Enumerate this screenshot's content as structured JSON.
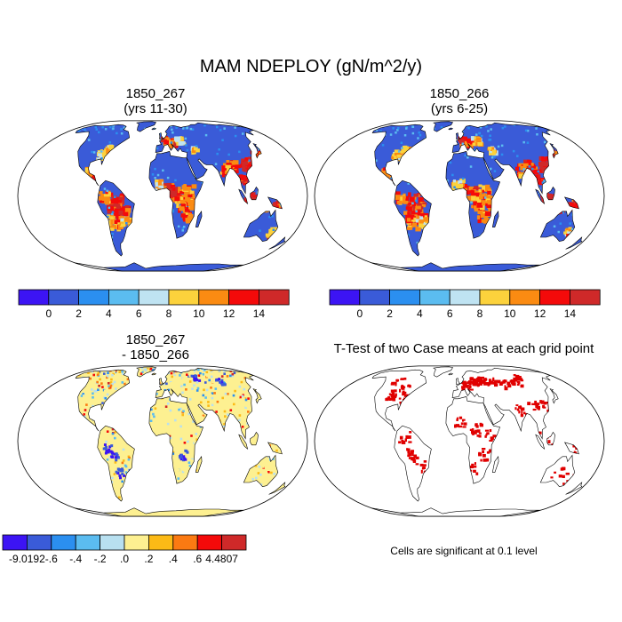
{
  "title": "MAM NDEPLOY (gN/m^2/y)",
  "panels": [
    {
      "id": "p1",
      "title_line1": "1850_267",
      "title_line2": "(yrs 11-30)",
      "colorbar": "main"
    },
    {
      "id": "p2",
      "title_line1": "1850_266",
      "title_line2": "(yrs 6-25)",
      "colorbar": "main"
    },
    {
      "id": "p3",
      "title_line1": "1850_267",
      "title_line2": "- 1850_266",
      "colorbar": "diff"
    },
    {
      "id": "p4",
      "title_line1": "T-Test of two Case means at each grid point",
      "title_line2": "",
      "colorbar": "none"
    }
  ],
  "colorbars": {
    "main": {
      "colors": [
        "#3c14f4",
        "#3a5bd8",
        "#2b8ff0",
        "#5bbcf0",
        "#bfe3f2",
        "#fcd23c",
        "#fb8b12",
        "#f40a0a",
        "#cf2929"
      ],
      "labels": [
        "0",
        "2",
        "4",
        "6",
        "8",
        "10",
        "12",
        "14"
      ]
    },
    "diff": {
      "colors": [
        "#3c14f4",
        "#3a5bd8",
        "#2b8ff0",
        "#5bbcf0",
        "#b8e0f0",
        "#fdf091",
        "#fcba16",
        "#fb7a12",
        "#f40a0a",
        "#cf2929"
      ],
      "labels": [
        "-9.0192",
        "-.6",
        "-.4",
        "-.2",
        ".0",
        ".2",
        ".4",
        ".6",
        "4.4807"
      ]
    }
  },
  "significance_note": "Cells are significant at 0.1 level",
  "map_colors": {
    "ocean": "#ffffff",
    "coast": "#000000",
    "land_base": "#3a5bd8",
    "antarctica_main": "#3a5bd8",
    "antarctica_diff": "#fdf091",
    "diff_land_base": "#fdf091",
    "significant": "#e00000"
  }
}
